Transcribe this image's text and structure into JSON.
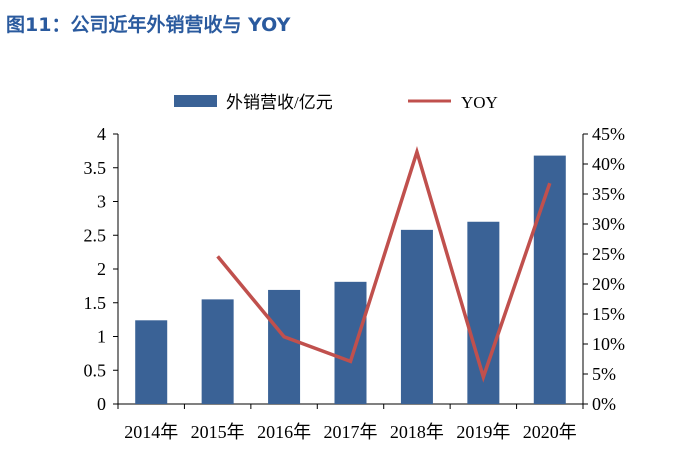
{
  "figure": {
    "title": "图11：公司近年外销营收与 YOY"
  },
  "chart_data": {
    "type": "bar",
    "categories": [
      "2014年",
      "2015年",
      "2016年",
      "2017年",
      "2018年",
      "2019年",
      "2020年"
    ],
    "series": [
      {
        "name": "外销营收/亿元",
        "type": "bar",
        "axis": "left",
        "color": "#3a6296",
        "values": [
          1.24,
          1.55,
          1.69,
          1.81,
          2.58,
          2.7,
          3.68
        ]
      },
      {
        "name": "YOY",
        "type": "line",
        "axis": "right",
        "color": "#c0504d",
        "values": [
          null,
          24.6,
          11.2,
          7.1,
          42.0,
          4.5,
          36.8
        ]
      }
    ],
    "y_left": {
      "lim": [
        0,
        4
      ],
      "ticks": [
        "0",
        "0.5",
        "1",
        "1.5",
        "2",
        "2.5",
        "3",
        "3.5",
        "4"
      ]
    },
    "y_right": {
      "lim": [
        0,
        45
      ],
      "ticks": [
        "0%",
        "5%",
        "10%",
        "15%",
        "20%",
        "25%",
        "30%",
        "35%",
        "40%",
        "45%"
      ]
    },
    "legend": {
      "position": "top",
      "items": [
        "外销营收/亿元",
        "YOY"
      ]
    },
    "grid": false
  }
}
